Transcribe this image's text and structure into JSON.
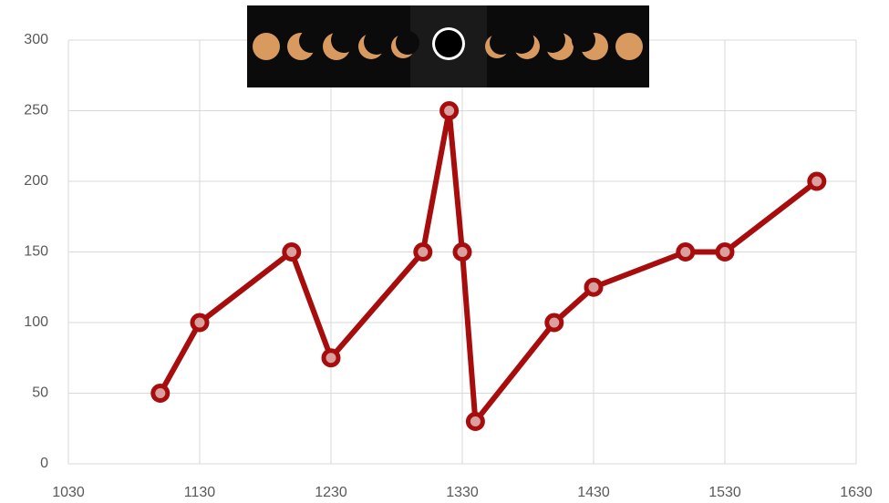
{
  "chart_data": {
    "type": "line",
    "x": [
      1100,
      1130,
      1200,
      1230,
      1300,
      1320,
      1330,
      1340,
      1400,
      1430,
      1500,
      1530,
      1600
    ],
    "series": [
      {
        "color": "#a80d0d",
        "values": [
          50,
          100,
          150,
          75,
          150,
          250,
          150,
          30,
          100,
          125,
          150,
          150,
          200
        ]
      }
    ],
    "xlim": [
      1030,
      1630
    ],
    "xticks": [
      1030,
      1130,
      1230,
      1330,
      1430,
      1530,
      1630
    ],
    "ylim": [
      0,
      300
    ],
    "yticks": [
      0,
      50,
      100,
      150,
      200,
      250,
      300
    ],
    "grid": true
  }
}
